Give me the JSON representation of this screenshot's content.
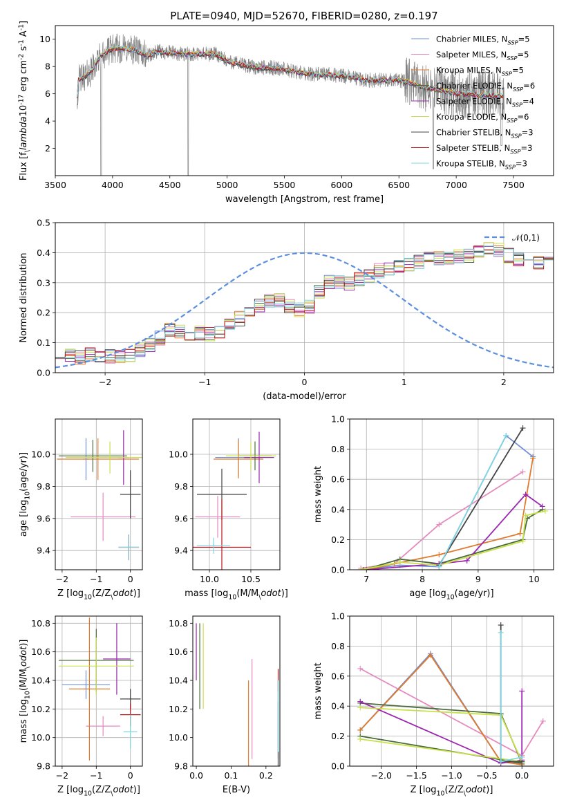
{
  "figure": {
    "title": "PLATE=0940, MJD=52670, FIBERID=0280, z=0.197"
  },
  "models": [
    {
      "label": "Chabrier MILES, N$_{SSP}$=5",
      "name": "Chabrier MILES",
      "nssp": 5,
      "color": "#6f8fd6"
    },
    {
      "label": "Salpeter MILES, N$_{SSP}$=5",
      "name": "Salpeter MILES",
      "nssp": 5,
      "color": "#e58abf"
    },
    {
      "label": "Kroupa MILES, N$_{SSP}$=5",
      "name": "Kroupa MILES",
      "nssp": 5,
      "color": "#e07a2c"
    },
    {
      "label": "Chabrier ELODIE, N$_{SSP}$=6",
      "name": "Chabrier ELODIE",
      "nssp": 6,
      "color": "#4a6b3a"
    },
    {
      "label": "Salpeter ELODIE, N$_{SSP}$=4",
      "name": "Salpeter ELODIE",
      "nssp": 4,
      "color": "#9b27b0"
    },
    {
      "label": "Kroupa ELODIE, N$_{SSP}$=6",
      "name": "Kroupa ELODIE",
      "nssp": 6,
      "color": "#c8e04a"
    },
    {
      "label": "Chabrier STELIB, N$_{SSP}$=3",
      "name": "Chabrier STELIB",
      "nssp": 3,
      "color": "#444444"
    },
    {
      "label": "Salpeter STELIB, N$_{SSP}$=3",
      "name": "Salpeter STELIB",
      "nssp": 3,
      "color": "#c0161b"
    },
    {
      "label": "Kroupa STELIB, N$_{SSP}$=3",
      "name": "Kroupa STELIB",
      "nssp": 3,
      "color": "#7fd6e0"
    }
  ],
  "chart_data": [
    {
      "id": "spectrum",
      "type": "line",
      "title": "PLATE=0940, MJD=52670, FIBERID=0280, z=0.197",
      "xlabel": "wavelength [Angstrom, rest frame]",
      "ylabel": "Flux [f$_\\lambda$10$^{-17}$ erg cm$^{-2}$ s$^{-1}$ A$^{-1}$]",
      "xlim": [
        3500,
        7850
      ],
      "ylim": [
        0,
        11
      ],
      "xticks": [
        3500,
        4000,
        4500,
        5000,
        5500,
        6000,
        6500,
        7000,
        7500
      ],
      "yticks": [
        2,
        4,
        6,
        8,
        10
      ],
      "grid": false,
      "legend": "top-right",
      "data_color": "#808080",
      "data_range_x": [
        3690,
        7420
      ],
      "continuum": {
        "x": [
          3700,
          3800,
          3900,
          4000,
          4100,
          4200,
          4300,
          4400,
          4500,
          4600,
          4700,
          4800,
          4900,
          5000,
          5100,
          5200,
          5300,
          5400,
          5500,
          5600,
          5700,
          5800,
          5900,
          6000,
          6100,
          6200,
          6300,
          6400,
          6500,
          6600,
          6700,
          6800,
          6900,
          7000,
          7100,
          7200,
          7300,
          7400
        ],
        "y": [
          7.0,
          7.5,
          8.8,
          9.3,
          9.3,
          9.2,
          8.8,
          9.1,
          9.0,
          8.9,
          8.9,
          8.9,
          8.9,
          8.4,
          8.2,
          8.0,
          7.9,
          7.9,
          7.8,
          7.6,
          7.5,
          7.4,
          7.4,
          7.3,
          7.2,
          7.0,
          7.0,
          7.0,
          7.0,
          6.8,
          6.5,
          6.4,
          6.2,
          6.0,
          6.0,
          5.9,
          5.9,
          5.8
        ]
      }
    },
    {
      "id": "residuals",
      "type": "line",
      "xlabel": "(data-model)/error",
      "ylabel": "Normed distribution",
      "xlim": [
        -2.5,
        2.5
      ],
      "ylim": [
        0,
        0.5
      ],
      "xticks": [
        -2,
        -1,
        0,
        1,
        2
      ],
      "yticks": [
        0.0,
        0.1,
        0.2,
        0.3,
        0.4,
        0.5
      ],
      "grid": true,
      "legend": "top-right",
      "gaussian": {
        "label": "$\\mathcal{N}(0,1)$",
        "mean": 0,
        "sigma": 1,
        "color": "#5b8ee0"
      },
      "hist_bins": {
        "start": -2.5,
        "width": 0.1
      },
      "hist_base": [
        0.06,
        0.055,
        0.05,
        0.06,
        0.06,
        0.055,
        0.055,
        0.06,
        0.075,
        0.09,
        0.115,
        0.14,
        0.14,
        0.13,
        0.13,
        0.13,
        0.14,
        0.16,
        0.18,
        0.2,
        0.225,
        0.24,
        0.24,
        0.22,
        0.21,
        0.22,
        0.27,
        0.3,
        0.3,
        0.3,
        0.31,
        0.32,
        0.34,
        0.35,
        0.36,
        0.36,
        0.37,
        0.38,
        0.38,
        0.38,
        0.39,
        0.39,
        0.4,
        0.41,
        0.41,
        0.39,
        0.38,
        0.37,
        0.37,
        0.36,
        0.37,
        0.35,
        0.33,
        0.31,
        0.29,
        0.28,
        0.27,
        0.26,
        0.24,
        0.22,
        0.2,
        0.19,
        0.18,
        0.17,
        0.15,
        0.14,
        0.13,
        0.12,
        0.11,
        0.1,
        0.1,
        0.09,
        0.08,
        0.08,
        0.07,
        0.07,
        0.06,
        0.06,
        0.05,
        0.05,
        0.045,
        0.04,
        0.04,
        0.035,
        0.035,
        0.03,
        0.03,
        0.03,
        0.025,
        0.025,
        0.025,
        0.02,
        0.02,
        0.02,
        0.02,
        0.02,
        0.02,
        0.02,
        0.02,
        0.02
      ]
    },
    {
      "id": "age-vs-z",
      "type": "scatter",
      "xlabel": "Z [log$_{10}$(Z/Z$_\\odot$)]",
      "ylabel": "age  [log$_{10}$(age/yr)]",
      "xlim": [
        -2.2,
        0.35
      ],
      "ylim": [
        9.28,
        10.22
      ],
      "xticks": [
        -2,
        -1,
        0
      ],
      "yticks": [
        9.4,
        9.6,
        9.8,
        10.0
      ],
      "grid": true,
      "crosses": [
        {
          "model": 0,
          "x": -1.3,
          "y": 9.97,
          "xerr": 0.1,
          "yerr": 0.13
        },
        {
          "model": 1,
          "x": -0.8,
          "y": 9.61,
          "xerr": 0.95,
          "yerr": 0.15
        },
        {
          "model": 2,
          "x": -0.95,
          "y": 9.97,
          "xerr": 1.2,
          "yerr": 0.13
        },
        {
          "model": 3,
          "x": -1.1,
          "y": 9.99,
          "xerr": 1.0,
          "yerr": 0.1
        },
        {
          "model": 4,
          "x": -0.2,
          "y": 9.98,
          "xerr": 0.15,
          "yerr": 0.17
        },
        {
          "model": 5,
          "x": -0.6,
          "y": 9.98,
          "xerr": 1.3,
          "yerr": 0.1
        },
        {
          "model": 6,
          "x": 0.0,
          "y": 9.75,
          "xerr": 0.3,
          "yerr": 0.15
        },
        {
          "model": 7,
          "x": -0.05,
          "y": 9.42,
          "xerr": 0.3,
          "yerr": 0.08
        },
        {
          "model": 8,
          "x": -0.05,
          "y": 9.42,
          "xerr": 0.3,
          "yerr": 0.08
        }
      ]
    },
    {
      "id": "age-vs-mass",
      "type": "scatter",
      "xlabel": "mass [log$_{10}$(M/M$_\\odot$)]",
      "ylabel": "",
      "xlim": [
        9.8,
        10.85
      ],
      "ylim": [
        9.28,
        10.22
      ],
      "xticks": [
        10.0,
        10.5
      ],
      "yticks": [
        9.4,
        9.6,
        9.8,
        10.0
      ],
      "grid": true,
      "crosses": [
        {
          "model": 0,
          "x": 10.35,
          "y": 9.98,
          "xerr": 0.28,
          "yerr": 0.12
        },
        {
          "model": 1,
          "x": 10.1,
          "y": 9.61,
          "xerr": 0.27,
          "yerr": 0.13
        },
        {
          "model": 2,
          "x": 10.35,
          "y": 9.97,
          "xerr": 0.3,
          "yerr": 0.12
        },
        {
          "model": 3,
          "x": 10.55,
          "y": 9.99,
          "xerr": 0.2,
          "yerr": 0.09
        },
        {
          "model": 4,
          "x": 10.6,
          "y": 9.98,
          "xerr": 0.18,
          "yerr": 0.16
        },
        {
          "model": 5,
          "x": 10.5,
          "y": 9.99,
          "xerr": 0.3,
          "yerr": 0.09
        },
        {
          "model": 6,
          "x": 10.15,
          "y": 9.75,
          "xerr": 0.3,
          "yerr": 0.16
        },
        {
          "model": 7,
          "x": 10.15,
          "y": 9.42,
          "xerr": 0.35,
          "yerr": 0.3
        },
        {
          "model": 8,
          "x": 10.05,
          "y": 9.43,
          "xerr": 0.2,
          "yerr": 0.05
        }
      ]
    },
    {
      "id": "weight-vs-age",
      "type": "line",
      "xlabel": "age  [log$_{10}$(age/yr)]",
      "ylabel": "mass weight",
      "xlim": [
        6.7,
        10.35
      ],
      "ylim": [
        0,
        1.0
      ],
      "xticks": [
        7,
        8,
        9,
        10
      ],
      "yticks": [
        0.0,
        0.2,
        0.4,
        0.6,
        0.8,
        1.0
      ],
      "grid": true,
      "series": [
        {
          "model": 0,
          "x": [
            6.9,
            7.6,
            8.3,
            9.5,
            9.98
          ],
          "y": [
            0.0,
            0.03,
            0.02,
            0.89,
            0.75
          ]
        },
        {
          "model": 1,
          "x": [
            6.9,
            7.5,
            8.3,
            9.8
          ],
          "y": [
            0.01,
            0.04,
            0.3,
            0.65
          ]
        },
        {
          "model": 2,
          "x": [
            7.0,
            7.5,
            8.3,
            9.75,
            9.98
          ],
          "y": [
            0.0,
            0.04,
            0.1,
            0.24,
            0.74
          ]
        },
        {
          "model": 3,
          "x": [
            6.95,
            7.6,
            8.3,
            9.8,
            9.88,
            10.15
          ],
          "y": [
            0.0,
            0.07,
            0.04,
            0.2,
            0.34,
            0.4
          ]
        },
        {
          "model": 4,
          "x": [
            7.0,
            8.3,
            8.8,
            9.85,
            10.15
          ],
          "y": [
            0.0,
            0.04,
            0.06,
            0.5,
            0.42
          ]
        },
        {
          "model": 5,
          "x": [
            6.9,
            7.6,
            8.3,
            9.8,
            9.85,
            10.2
          ],
          "y": [
            0.0,
            0.05,
            0.03,
            0.19,
            0.36,
            0.39
          ]
        },
        {
          "model": 6,
          "x": [
            8.3,
            9.8
          ],
          "y": [
            0.03,
            0.94
          ]
        },
        {
          "model": 8,
          "x": [
            8.3,
            9.5
          ],
          "y": [
            0.02,
            0.89
          ]
        }
      ]
    },
    {
      "id": "mass-vs-z",
      "type": "scatter",
      "xlabel": "Z [log$_{10}$(Z/Z$_\\odot$)]",
      "ylabel": "mass [log$_{10}$(M/M$_\\odot$)]",
      "xlim": [
        -2.2,
        0.35
      ],
      "ylim": [
        9.8,
        10.85
      ],
      "xticks": [
        -2,
        -1,
        0
      ],
      "yticks": [
        9.8,
        10.0,
        10.2,
        10.4,
        10.6,
        10.8
      ],
      "grid": true,
      "crosses": [
        {
          "model": 0,
          "x": -1.3,
          "y": 10.37,
          "xerr": 0.7,
          "yerr": 0.1
        },
        {
          "model": 1,
          "x": -0.8,
          "y": 10.08,
          "xerr": 0.5,
          "yerr": 0.07
        },
        {
          "model": 2,
          "x": -1.2,
          "y": 10.34,
          "xerr": 0.6,
          "yerr": 0.5
        },
        {
          "model": 3,
          "x": -1.0,
          "y": 10.54,
          "xerr": 1.1,
          "yerr": 0.22
        },
        {
          "model": 4,
          "x": -0.4,
          "y": 10.55,
          "xerr": 0.4,
          "yerr": 0.25
        },
        {
          "model": 5,
          "x": -1.0,
          "y": 10.5,
          "xerr": 1.1,
          "yerr": 0.2
        },
        {
          "model": 6,
          "x": 0.0,
          "y": 10.27,
          "xerr": 0.3,
          "yerr": 0.07
        },
        {
          "model": 7,
          "x": 0.0,
          "y": 10.16,
          "xerr": 0.3,
          "yerr": 0.08
        },
        {
          "model": 8,
          "x": 0.0,
          "y": 10.04,
          "xerr": 0.2,
          "yerr": 0.12
        }
      ]
    },
    {
      "id": "mass-vs-ebv",
      "type": "scatter",
      "xlabel": "E(B-V)",
      "ylabel": "",
      "xlim": [
        -0.01,
        0.24
      ],
      "ylim": [
        9.8,
        10.85
      ],
      "xticks": [
        0.0,
        0.1,
        0.2
      ],
      "yticks": [
        9.8,
        10.0,
        10.2,
        10.4,
        10.6,
        10.8
      ],
      "grid": false,
      "crosses": [
        {
          "model": 0,
          "x": 0.235,
          "y": 10.05,
          "xerr": 0.0,
          "yerr": 0.2
        },
        {
          "model": 1,
          "x": 0.16,
          "y": 10.2,
          "xerr": 0.0,
          "yerr": 0.35
        },
        {
          "model": 2,
          "x": 0.15,
          "y": 10.1,
          "xerr": 0.0,
          "yerr": 0.3
        },
        {
          "model": 3,
          "x": 0.01,
          "y": 10.5,
          "xerr": 0.0,
          "yerr": 0.3
        },
        {
          "model": 4,
          "x": 0.0,
          "y": 10.6,
          "xerr": 0.0,
          "yerr": 0.2
        },
        {
          "model": 5,
          "x": 0.02,
          "y": 10.5,
          "xerr": 0.0,
          "yerr": 0.3
        },
        {
          "model": 6,
          "x": 0.235,
          "y": 10.1,
          "xerr": 0.0,
          "yerr": 0.3
        },
        {
          "model": 7,
          "x": 0.235,
          "y": 10.4,
          "xerr": 0.0,
          "yerr": 0.08
        },
        {
          "model": 8,
          "x": 0.235,
          "y": 10.15,
          "xerr": 0.0,
          "yerr": 0.25
        }
      ]
    },
    {
      "id": "weight-vs-z",
      "type": "line",
      "xlabel": "Z [log$_{10}$(Z/Z$_\\odot$)]",
      "ylabel": "mass weight",
      "xlim": [
        -2.45,
        0.45
      ],
      "ylim": [
        0,
        1.0
      ],
      "xticks": [
        -2.0,
        -1.5,
        -1.0,
        -0.5,
        0.0
      ],
      "yticks": [
        0.0,
        0.2,
        0.4,
        0.6,
        0.8,
        1.0
      ],
      "grid": true,
      "series": [
        {
          "model": 0,
          "x": [
            -2.3,
            -1.3,
            -0.3,
            0.0
          ],
          "y": [
            0.24,
            0.75,
            0.03,
            0.02
          ]
        },
        {
          "model": 1,
          "x": [
            -2.3,
            0.0,
            0.3
          ],
          "y": [
            0.65,
            0.07,
            0.3
          ]
        },
        {
          "model": 2,
          "x": [
            -2.3,
            -1.3,
            -0.3,
            0.0
          ],
          "y": [
            0.24,
            0.74,
            0.03,
            0.01
          ]
        },
        {
          "model": 3,
          "x": [
            -2.3,
            -0.3,
            0.0,
            -2.3
          ],
          "y": [
            0.42,
            0.35,
            0.02,
            0.2
          ]
        },
        {
          "model": 4,
          "x": [
            -2.3,
            -0.3,
            0.0,
            0.0
          ],
          "y": [
            0.43,
            0.02,
            0.04,
            0.5
          ]
        },
        {
          "model": 5,
          "x": [
            -2.3,
            -0.3,
            0.0,
            -2.3
          ],
          "y": [
            0.39,
            0.34,
            0.03,
            0.18
          ]
        },
        {
          "model": 6,
          "x": [
            -0.3,
            -0.3,
            0.0
          ],
          "y": [
            0.94,
            0.03,
            0.03
          ]
        },
        {
          "model": 8,
          "x": [
            -0.3,
            -0.3,
            0.0
          ],
          "y": [
            0.89,
            0.03,
            0.06
          ]
        }
      ]
    }
  ]
}
